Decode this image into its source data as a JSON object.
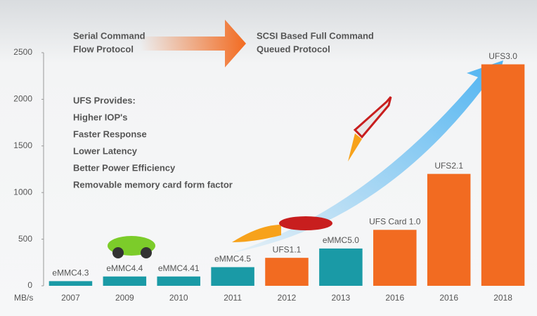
{
  "chart_data": {
    "type": "bar",
    "categories": [
      "2007",
      "2009",
      "2010",
      "2011",
      "2012",
      "2013",
      "2016",
      "2016",
      "2018"
    ],
    "values": [
      50,
      100,
      100,
      200,
      300,
      400,
      600,
      1200,
      2375
    ],
    "bar_labels": [
      "eMMC4.3",
      "eMMC4.4",
      "eMMC4.41",
      "eMMC4.5",
      "UFS1.1",
      "eMMC5.0",
      "UFS Card 1.0",
      "UFS2.1",
      "UFS3.0"
    ],
    "colors": [
      "#1a9aa6",
      "#1a9aa6",
      "#1a9aa6",
      "#1a9aa6",
      "#f26b21",
      "#1a9aa6",
      "#f26b21",
      "#f26b21",
      "#f26b21"
    ],
    "y_unit": "MB/s",
    "ylim": [
      0,
      2500
    ],
    "yticks": [
      0,
      500,
      1000,
      1500,
      2000,
      2500
    ],
    "protocol_left": [
      "Serial Command",
      "Flow Protocol"
    ],
    "protocol_right": [
      "SCSI Based Full Command",
      "Queued Protocol"
    ],
    "features_title": "UFS Provides:",
    "features": [
      "Higher IOP's",
      "Faster Response",
      "Lower Latency",
      "Better Power Efficiency",
      "Removable memory card form factor"
    ]
  }
}
